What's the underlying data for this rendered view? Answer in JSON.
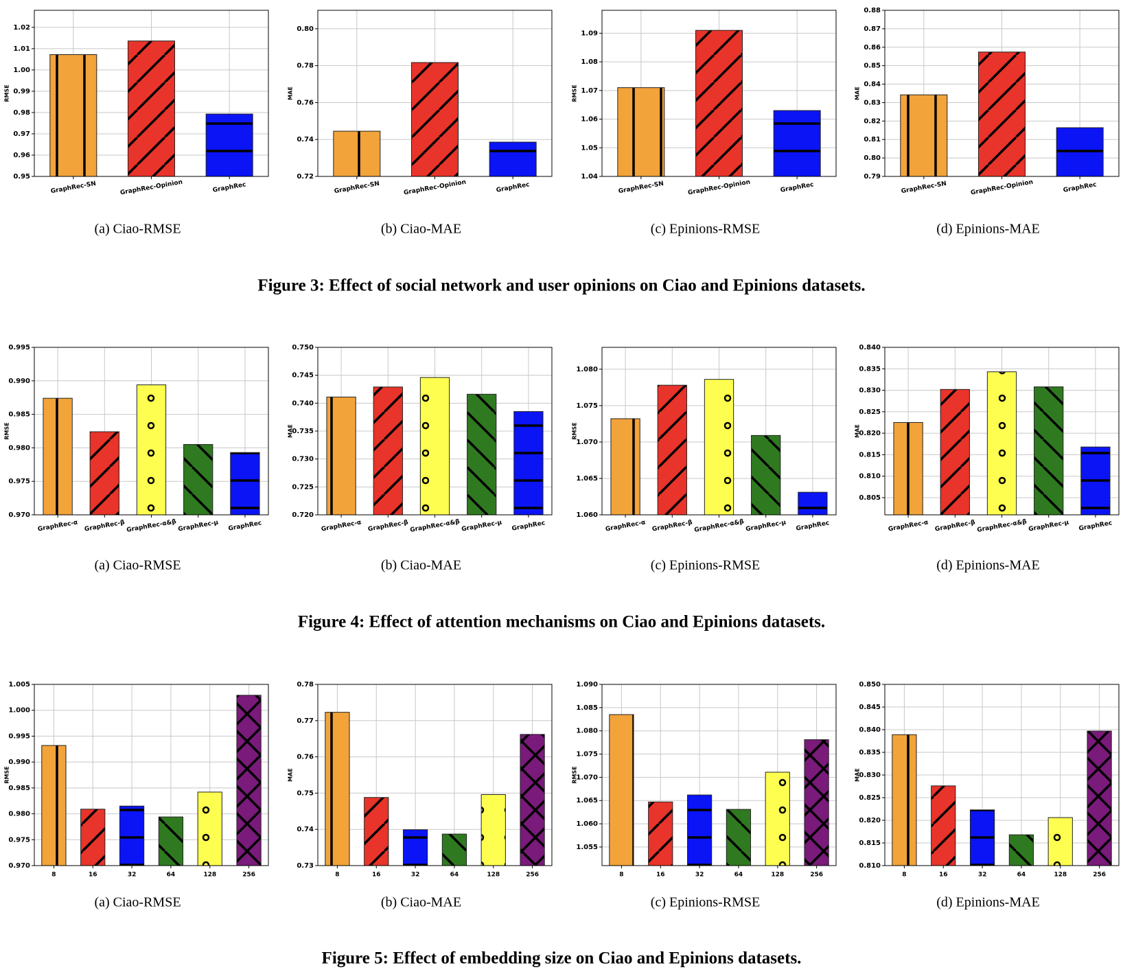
{
  "chart_data": [
    {
      "type": "bar",
      "caption": "(a)  Ciao-RMSE",
      "ylabel": "RMSE",
      "categories": [
        "GraphRec-SN",
        "GraphRec-Opinion",
        "GraphRec"
      ],
      "values": [
        1.0072,
        1.0136,
        0.9793
      ],
      "colors": [
        "#f2a33a",
        "#e8342a",
        "#0a14f5"
      ],
      "hatches": [
        "|",
        "/",
        "-"
      ],
      "ylim": [
        0.95,
        1.028
      ],
      "yticks": [
        0.95,
        0.96,
        0.97,
        0.98,
        0.99,
        {
          "value": 1,
          "label": "1.00"
        },
        1.01,
        1.02
      ],
      "grid": true
    },
    {
      "type": "bar",
      "caption": "(b)  Ciao-MAE",
      "ylabel": "MAE",
      "categories": [
        "GraphRec-SN",
        "GraphRec-Opinion",
        "GraphRec"
      ],
      "values": [
        0.7445,
        0.7817,
        0.7386
      ],
      "colors": [
        "#f2a33a",
        "#e8342a",
        "#0a14f5"
      ],
      "hatches": [
        "|",
        "/",
        "-"
      ],
      "ylim": [
        0.72,
        0.81
      ],
      "yticks": [
        0.72,
        0.74,
        0.76,
        0.78,
        {
          "value": 0.8,
          "label": "0.80"
        }
      ],
      "grid": true
    },
    {
      "type": "bar",
      "caption": "(c)  Epinions-RMSE",
      "ylabel": "RMSE",
      "categories": [
        "GraphRec-SN",
        "GraphRec-Opinion",
        "GraphRec"
      ],
      "values": [
        1.071,
        1.091,
        1.063
      ],
      "colors": [
        "#f2a33a",
        "#e8342a",
        "#0a14f5"
      ],
      "hatches": [
        "|",
        "/",
        "-"
      ],
      "ylim": [
        1.04,
        1.098
      ],
      "yticks": [
        1.04,
        1.05,
        1.06,
        1.07,
        1.08,
        1.09
      ],
      "grid": true
    },
    {
      "type": "bar",
      "caption": "(d)  Epinions-MAE",
      "ylabel": "MAE",
      "categories": [
        "GraphRec-SN",
        "GraphRec-Opinion",
        "GraphRec"
      ],
      "values": [
        0.8342,
        0.8574,
        0.8164
      ],
      "colors": [
        "#f2a33a",
        "#e8342a",
        "#0a14f5"
      ],
      "hatches": [
        "|",
        "/",
        "-"
      ],
      "ylim": [
        0.79,
        0.88
      ],
      "yticks": [
        0.79,
        {
          "value": 0.8,
          "label": "0.80"
        },
        0.81,
        0.82,
        0.83,
        0.84,
        0.85,
        0.86,
        0.87,
        0.88
      ],
      "grid": true
    },
    {
      "type": "bar",
      "caption": "(a)  Ciao-RMSE",
      "ylabel": "RMSE",
      "categories": [
        "GraphRec-α",
        "GraphRec-β",
        "GraphRec-α&β",
        "GraphRec-μ",
        "GraphRec"
      ],
      "values": [
        0.9874,
        0.9824,
        0.9894,
        0.9805,
        0.9793
      ],
      "colors": [
        "#f2a33a",
        "#e8342a",
        "#fefe50",
        "#2f7a20",
        "#0a14f5"
      ],
      "hatches": [
        "|",
        "/",
        "o",
        "\\",
        "-"
      ],
      "ylim": [
        0.97,
        0.995
      ],
      "yticks": [
        {
          "value": 0.97,
          "label": "0.970"
        },
        0.975,
        {
          "value": 0.98,
          "label": "0.980"
        },
        0.985,
        {
          "value": 0.99,
          "label": "0.990"
        },
        0.995
      ],
      "grid": true
    },
    {
      "type": "bar",
      "caption": "(b)  Ciao-MAE",
      "ylabel": "MAE",
      "categories": [
        "GraphRec-α",
        "GraphRec-β",
        "GraphRec-α&β",
        "GraphRec-μ",
        "GraphRec"
      ],
      "values": [
        0.7411,
        0.7429,
        0.7446,
        0.7416,
        0.7385
      ],
      "colors": [
        "#f2a33a",
        "#e8342a",
        "#fefe50",
        "#2f7a20",
        "#0a14f5"
      ],
      "hatches": [
        "|",
        "/",
        "o",
        "\\",
        "-"
      ],
      "ylim": [
        0.72,
        0.75
      ],
      "yticks": [
        {
          "value": 0.72,
          "label": "0.720"
        },
        0.725,
        {
          "value": 0.73,
          "label": "0.730"
        },
        0.735,
        {
          "value": 0.74,
          "label": "0.740"
        },
        0.745,
        {
          "value": 0.75,
          "label": "0.750"
        }
      ],
      "grid": true
    },
    {
      "type": "bar",
      "caption": "(c)  Epinions-RMSE",
      "ylabel": "RMSE",
      "categories": [
        "GraphRec-α",
        "GraphRec-β",
        "GraphRec-α&β",
        "GraphRec-μ",
        "GraphRec"
      ],
      "values": [
        1.0732,
        1.0778,
        1.0786,
        1.0709,
        1.0631
      ],
      "colors": [
        "#f2a33a",
        "#e8342a",
        "#fefe50",
        "#2f7a20",
        "#0a14f5"
      ],
      "hatches": [
        "|",
        "/",
        "o",
        "\\",
        "-"
      ],
      "ylim": [
        1.06,
        1.083
      ],
      "yticks": [
        {
          "value": 1.06,
          "label": "1.060"
        },
        1.065,
        {
          "value": 1.07,
          "label": "1.070"
        },
        1.075,
        {
          "value": 1.08,
          "label": "1.080"
        }
      ],
      "grid": true
    },
    {
      "type": "bar",
      "caption": "(d)  Epinions-MAE",
      "ylabel": "MAE",
      "categories": [
        "GraphRec-α",
        "GraphRec-β",
        "GraphRec-α&β",
        "GraphRec-μ",
        "GraphRec"
      ],
      "values": [
        0.8225,
        0.8302,
        0.8343,
        0.8308,
        0.8168
      ],
      "colors": [
        "#f2a33a",
        "#e8342a",
        "#fefe50",
        "#2f7a20",
        "#0a14f5"
      ],
      "hatches": [
        "|",
        "/",
        "o",
        "\\",
        "-"
      ],
      "ylim": [
        0.801,
        0.84
      ],
      "yticks": [
        0.805,
        {
          "value": 0.81,
          "label": "0.810"
        },
        0.815,
        {
          "value": 0.82,
          "label": "0.820"
        },
        0.825,
        {
          "value": 0.83,
          "label": "0.830"
        },
        0.835,
        {
          "value": 0.84,
          "label": "0.840"
        }
      ],
      "grid": true
    },
    {
      "type": "bar",
      "caption": "(a)  Ciao-RMSE",
      "ylabel": "RMSE",
      "categories": [
        "8",
        "16",
        "32",
        "64",
        "128",
        "256"
      ],
      "values": [
        0.9932,
        0.9809,
        0.9815,
        0.9794,
        0.9842,
        1.0029
      ],
      "colors": [
        "#f2a33a",
        "#e8342a",
        "#0a14f5",
        "#2f7a20",
        "#fefe50",
        "#7a1a7a"
      ],
      "hatches": [
        "|",
        "/",
        "-",
        "\\",
        "o",
        "x"
      ],
      "ylim": [
        0.97,
        1.005
      ],
      "yticks": [
        {
          "value": 0.97,
          "label": "0.970"
        },
        0.975,
        {
          "value": 0.98,
          "label": "0.980"
        },
        0.985,
        {
          "value": 0.99,
          "label": "0.990"
        },
        0.995,
        {
          "value": 1,
          "label": "1.000"
        },
        1.005
      ],
      "grid": true
    },
    {
      "type": "bar",
      "caption": "(b)  Ciao-MAE",
      "ylabel": "MAE",
      "categories": [
        "8",
        "16",
        "32",
        "64",
        "128",
        "256"
      ],
      "values": [
        0.7723,
        0.7488,
        0.7399,
        0.7387,
        0.7496,
        0.7662
      ],
      "colors": [
        "#f2a33a",
        "#e8342a",
        "#0a14f5",
        "#2f7a20",
        "#fefe50",
        "#7a1a7a"
      ],
      "hatches": [
        "|",
        "/",
        "-",
        "\\",
        "o",
        "x"
      ],
      "ylim": [
        0.73,
        0.78
      ],
      "yticks": [
        0.73,
        0.74,
        0.75,
        0.76,
        0.77,
        0.78
      ],
      "grid": true
    },
    {
      "type": "bar",
      "caption": "(c)  Epinions-RMSE",
      "ylabel": "RMSE",
      "categories": [
        "8",
        "16",
        "32",
        "64",
        "128",
        "256"
      ],
      "values": [
        1.0835,
        1.0647,
        1.0662,
        1.0631,
        1.0711,
        1.0781
      ],
      "colors": [
        "#f2a33a",
        "#e8342a",
        "#0a14f5",
        "#2f7a20",
        "#fefe50",
        "#7a1a7a"
      ],
      "hatches": [
        "|",
        "/",
        "-",
        "\\",
        "o",
        "x"
      ],
      "ylim": [
        1.051,
        1.09
      ],
      "yticks": [
        1.055,
        {
          "value": 1.06,
          "label": "1.060"
        },
        1.065,
        {
          "value": 1.07,
          "label": "1.070"
        },
        1.075,
        {
          "value": 1.08,
          "label": "1.080"
        },
        1.085,
        {
          "value": 1.09,
          "label": "1.090"
        }
      ],
      "grid": true
    },
    {
      "type": "bar",
      "caption": "(d)  Epinions-MAE",
      "ylabel": "MAE",
      "categories": [
        "8",
        "16",
        "32",
        "64",
        "128",
        "256"
      ],
      "values": [
        0.8389,
        0.8276,
        0.8223,
        0.8168,
        0.8206,
        0.8397
      ],
      "colors": [
        "#f2a33a",
        "#e8342a",
        "#0a14f5",
        "#2f7a20",
        "#fefe50",
        "#7a1a7a"
      ],
      "hatches": [
        "|",
        "/",
        "-",
        "\\",
        "o",
        "x"
      ],
      "ylim": [
        0.81,
        0.85
      ],
      "yticks": [
        {
          "value": 0.81,
          "label": "0.810"
        },
        0.815,
        {
          "value": 0.82,
          "label": "0.820"
        },
        0.825,
        {
          "value": 0.83,
          "label": "0.830"
        },
        0.835,
        {
          "value": 0.84,
          "label": "0.840"
        },
        0.845,
        {
          "value": 0.85,
          "label": "0.850"
        }
      ],
      "grid": true
    }
  ],
  "figure_captions": [
    "Figure 3: Effect of social network and user opinions on Ciao and Epinions datasets.",
    "Figure 4: Effect of attention mechanisms on Ciao and Epinions datasets.",
    "Figure 5: Effect of embedding size on Ciao and Epinions datasets."
  ]
}
